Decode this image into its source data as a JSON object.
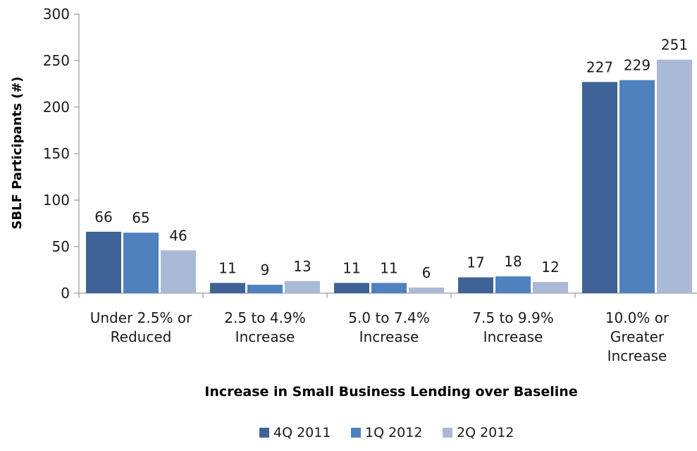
{
  "chart_data": {
    "type": "bar",
    "categories": [
      [
        "Under 2.5% or",
        "Reduced"
      ],
      [
        "2.5 to 4.9%",
        "Increase"
      ],
      [
        "5.0 to 7.4%",
        "Increase"
      ],
      [
        "7.5 to 9.9%",
        "Increase"
      ],
      [
        "10.0% or",
        "Greater",
        "Increase"
      ]
    ],
    "series": [
      {
        "name": "4Q 2011",
        "color": "#3f6396",
        "values": [
          66,
          11,
          11,
          17,
          227
        ]
      },
      {
        "name": "1Q 2012",
        "color": "#4f81bd",
        "values": [
          65,
          9,
          11,
          18,
          229
        ]
      },
      {
        "name": "2Q 2012",
        "color": "#aab9d6",
        "values": [
          46,
          13,
          6,
          12,
          251
        ]
      }
    ],
    "ylabel": "SBLF Participants (#)",
    "xlabel": "Increase in Small Business Lending over Baseline",
    "ylim": [
      0,
      300
    ],
    "yticks": [
      0,
      50,
      100,
      150,
      200,
      250,
      300
    ],
    "grid": false,
    "legend": "bottom-center"
  }
}
